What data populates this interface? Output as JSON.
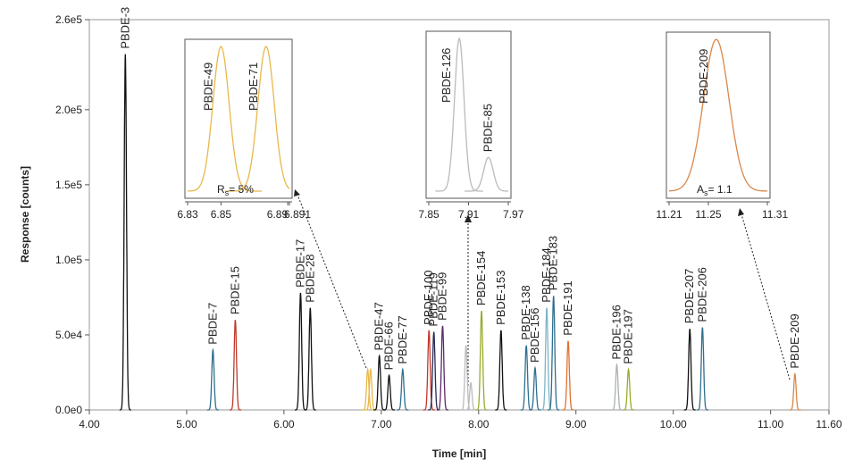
{
  "chart_data": {
    "type": "line",
    "xlabel": "Time [min]",
    "ylabel": "Response [counts]",
    "xlim": [
      4,
      11.6
    ],
    "xticks": [
      {
        "value": 4,
        "label": "4.00"
      },
      {
        "value": 5,
        "label": "5.00"
      },
      {
        "value": 6,
        "label": "6.00"
      },
      {
        "value": 7,
        "label": "7.00"
      },
      {
        "value": 8,
        "label": "8.00"
      },
      {
        "value": 9,
        "label": "9.00"
      },
      {
        "value": 10,
        "label": "10.00"
      },
      {
        "value": 11,
        "label": "11.00"
      },
      {
        "value": 11.6,
        "label": "11.60"
      }
    ],
    "ylim": [
      0,
      260000
    ],
    "yticks": [
      {
        "value": 0,
        "label": "0.0e0"
      },
      {
        "value": 50000,
        "label": "5.0e4"
      },
      {
        "value": 100000,
        "label": "1.0e5"
      },
      {
        "value": 150000,
        "label": "1.5e5"
      },
      {
        "value": 200000,
        "label": "2.0e5"
      },
      {
        "value": 260000,
        "label": "2.6e5"
      }
    ],
    "peaks": [
      {
        "label": "PBDE-3",
        "x": 4.37,
        "value": 237000,
        "color": "#111111"
      },
      {
        "label": "PBDE-7",
        "x": 5.27,
        "value": 40000,
        "color": "#2f6f8f"
      },
      {
        "label": "PBDE-15",
        "x": 5.5,
        "value": 60000,
        "color": "#c0392b"
      },
      {
        "label": "PBDE-17",
        "x": 6.17,
        "value": 78000,
        "color": "#111111"
      },
      {
        "label": "PBDE-28",
        "x": 6.27,
        "value": 68000,
        "color": "#111111"
      },
      {
        "x": 6.86,
        "value": 27000,
        "color": "#e8b84a"
      },
      {
        "x": 6.89,
        "value": 27000,
        "color": "#e8b84a"
      },
      {
        "label": "PBDE-47",
        "x": 6.98,
        "value": 36000,
        "color": "#111111"
      },
      {
        "label": "PBDE-66",
        "x": 7.08,
        "value": 23000,
        "color": "#111111"
      },
      {
        "label": "PBDE-77",
        "x": 7.22,
        "value": 27000,
        "color": "#2f6f8f"
      },
      {
        "label": "PBDE-100",
        "x": 7.49,
        "value": 53000,
        "color": "#c0392b"
      },
      {
        "label": "PBDE-119",
        "x": 7.54,
        "value": 52000,
        "color": "#2a2a55"
      },
      {
        "label": "PBDE-99",
        "x": 7.63,
        "value": 56000,
        "color": "#5a2a6a"
      },
      {
        "x": 7.87,
        "value": 43000,
        "color": "#bbbbbb"
      },
      {
        "x": 7.92,
        "value": 18000,
        "color": "#bbbbbb"
      },
      {
        "label": "PBDE-154",
        "x": 8.03,
        "value": 66000,
        "color": "#9aaa2a"
      },
      {
        "label": "PBDE-153",
        "x": 8.23,
        "value": 53000,
        "color": "#111111"
      },
      {
        "label": "PBDE-138",
        "x": 8.49,
        "value": 43000,
        "color": "#2f6f8f"
      },
      {
        "label": "PBDE-156",
        "x": 8.58,
        "value": 28000,
        "color": "#2f6f8f"
      },
      {
        "label": "PBDE-184",
        "x": 8.7,
        "value": 68000,
        "color": "#7fb3c8"
      },
      {
        "label": "PBDE-183",
        "x": 8.77,
        "value": 76000,
        "color": "#2f6f8f"
      },
      {
        "label": "PBDE-191",
        "x": 8.92,
        "value": 46000,
        "color": "#e07030"
      },
      {
        "label": "PBDE-196",
        "x": 9.42,
        "value": 30000,
        "color": "#aab0b0"
      },
      {
        "label": "PBDE-197",
        "x": 9.54,
        "value": 27000,
        "color": "#9aaa2a"
      },
      {
        "label": "PBDE-207",
        "x": 10.17,
        "value": 54000,
        "color": "#111111"
      },
      {
        "label": "PBDE-206",
        "x": 10.3,
        "value": 55000,
        "color": "#2f6f8f"
      },
      {
        "label": "PBDE-209",
        "x": 11.25,
        "value": 24000,
        "color": "#d9874a"
      }
    ],
    "insets": [
      {
        "color": "#e8b84a",
        "xlim": [
          6.83,
          6.891
        ],
        "xticks": [
          6.83,
          6.85,
          6.89,
          6.891
        ],
        "peaks": [
          {
            "label": "PBDE-49",
            "x": 6.85,
            "value": 27000
          },
          {
            "label": "PBDE-71",
            "x": 6.877,
            "value": 27000
          }
        ],
        "annotation": {
          "symbol": "R",
          "subscript": "s",
          "text": "= 5%"
        }
      },
      {
        "color": "#bbbbbb",
        "xlim": [
          7.85,
          7.97
        ],
        "xticks": [
          7.85,
          7.91,
          7.97
        ],
        "peaks": [
          {
            "label": "PBDE-126",
            "x": 7.896,
            "value": 43000
          },
          {
            "label": "PBDE-85",
            "x": 7.94,
            "value": 9500
          }
        ]
      },
      {
        "color": "#d9874a",
        "xlim": [
          11.21,
          11.31
        ],
        "xticks": [
          11.21,
          11.25,
          11.31
        ],
        "peaks": [
          {
            "label": "PBDE-209",
            "x": 11.258,
            "value": 24000
          }
        ],
        "annotation": {
          "symbol": "A",
          "subscript": "s",
          "text": "= 1.1"
        }
      }
    ]
  }
}
